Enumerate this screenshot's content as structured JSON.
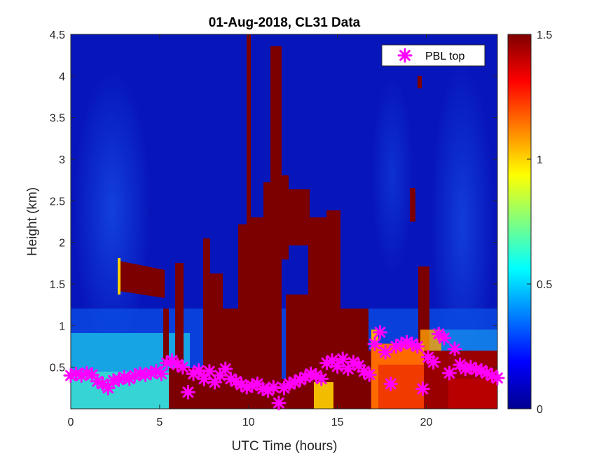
{
  "chart_data": {
    "type": "heatmap",
    "title": "01-Aug-2018, CL31 Data",
    "xlabel": "UTC Time (hours)",
    "ylabel": "Height (km)",
    "xlim": [
      0,
      24
    ],
    "ylim": [
      0,
      4.5
    ],
    "xticks": [
      "0",
      "5",
      "10",
      "15",
      "20"
    ],
    "xtick_values": [
      0,
      5,
      10,
      15,
      20
    ],
    "yticks": [
      "0.5",
      "1",
      "1.5",
      "2",
      "2.5",
      "3",
      "3.5",
      "4",
      "4.5"
    ],
    "ytick_values": [
      0.5,
      1,
      1.5,
      2,
      2.5,
      3,
      3.5,
      4,
      4.5
    ],
    "colorbar": {
      "colormap": "jet",
      "clim": [
        0,
        1.5
      ],
      "ticks": [
        "0",
        "0.5",
        "1",
        "1.5"
      ],
      "tick_values": [
        0,
        0.5,
        1,
        1.5
      ]
    },
    "legend": {
      "label": "PBL top",
      "location": "top-right",
      "marker": "asterisk",
      "color": "#ff00ff"
    },
    "series": [
      {
        "name": "PBL top",
        "x": [
          0,
          0.3,
          0.6,
          0.9,
          1.2,
          1.5,
          1.8,
          2.1,
          2.4,
          2.7,
          3.0,
          3.3,
          3.6,
          3.9,
          4.2,
          4.5,
          4.8,
          5.1,
          5.4,
          5.7,
          6.0,
          6.3,
          6.6,
          6.9,
          7.2,
          7.5,
          7.8,
          8.1,
          8.4,
          8.7,
          9.0,
          9.3,
          9.6,
          9.9,
          10.2,
          10.5,
          10.8,
          11.1,
          11.4,
          11.7,
          12.0,
          12.3,
          12.6,
          12.9,
          13.2,
          13.5,
          13.8,
          14.1,
          14.4,
          14.7,
          15.0,
          15.3,
          15.6,
          15.9,
          16.2,
          16.5,
          16.8,
          17.1,
          17.4,
          17.7,
          18.0,
          18.3,
          18.6,
          18.9,
          19.2,
          19.5,
          19.8,
          20.1,
          20.4,
          20.7,
          21.0,
          21.3,
          21.6,
          21.9,
          22.2,
          22.5,
          22.8,
          23.1,
          23.4,
          23.7,
          24.0
        ],
        "y": [
          0.4,
          0.42,
          0.4,
          0.43,
          0.41,
          0.33,
          0.3,
          0.25,
          0.34,
          0.35,
          0.38,
          0.36,
          0.4,
          0.42,
          0.41,
          0.43,
          0.45,
          0.42,
          0.55,
          0.58,
          0.53,
          0.5,
          0.2,
          0.42,
          0.46,
          0.36,
          0.45,
          0.32,
          0.4,
          0.48,
          0.36,
          0.33,
          0.29,
          0.26,
          0.28,
          0.3,
          0.24,
          0.22,
          0.26,
          0.07,
          0.25,
          0.3,
          0.32,
          0.35,
          0.38,
          0.42,
          0.4,
          0.36,
          0.55,
          0.58,
          0.51,
          0.6,
          0.48,
          0.56,
          0.52,
          0.45,
          0.41,
          0.78,
          0.92,
          0.68,
          0.3,
          0.75,
          0.78,
          0.8,
          0.78,
          0.75,
          0.24,
          0.62,
          0.56,
          0.9,
          0.85,
          0.43,
          0.72,
          0.53,
          0.48,
          0.5,
          0.47,
          0.46,
          0.43,
          0.4,
          0.37
        ]
      }
    ]
  }
}
